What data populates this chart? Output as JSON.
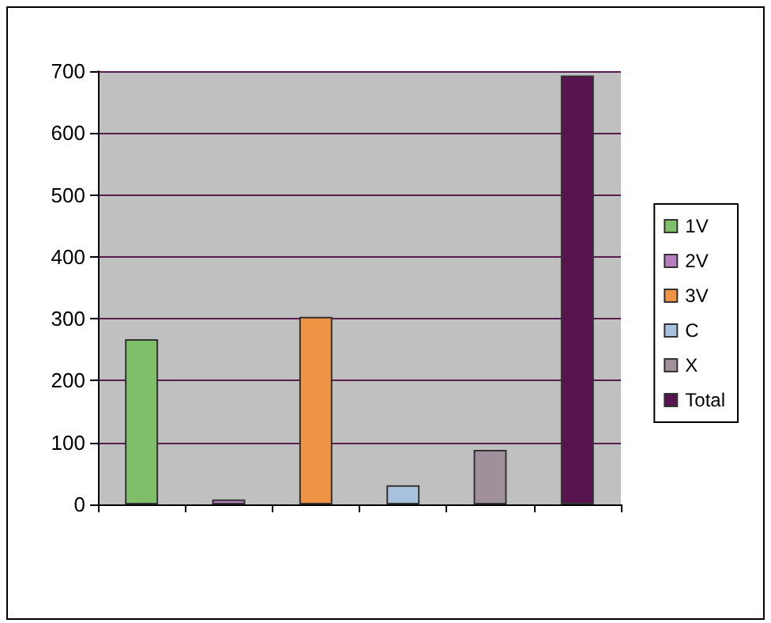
{
  "chart_data": {
    "type": "bar",
    "categories": [
      null,
      null,
      null,
      null,
      null,
      null
    ],
    "series": [
      {
        "name": "1V",
        "color": "#7fbf6a",
        "values": [
          267,
          null,
          null,
          null,
          null,
          null
        ]
      },
      {
        "name": "2V",
        "color": "#b77fc0",
        "values": [
          null,
          8,
          null,
          null,
          null,
          null
        ]
      },
      {
        "name": "3V",
        "color": "#ee9444",
        "values": [
          null,
          null,
          303,
          null,
          null,
          null
        ]
      },
      {
        "name": "C",
        "color": "#a8c2dd",
        "values": [
          null,
          null,
          null,
          31,
          null,
          null
        ]
      },
      {
        "name": "X",
        "color": "#a0909b",
        "values": [
          null,
          null,
          null,
          null,
          88,
          null
        ]
      },
      {
        "name": "Total",
        "color": "#57144e",
        "values": [
          null,
          null,
          null,
          null,
          null,
          693
        ]
      }
    ],
    "ylim": [
      0,
      700
    ],
    "yticks": [
      0,
      100,
      200,
      300,
      400,
      500,
      600,
      700
    ],
    "grid": "y",
    "legend": "right"
  }
}
